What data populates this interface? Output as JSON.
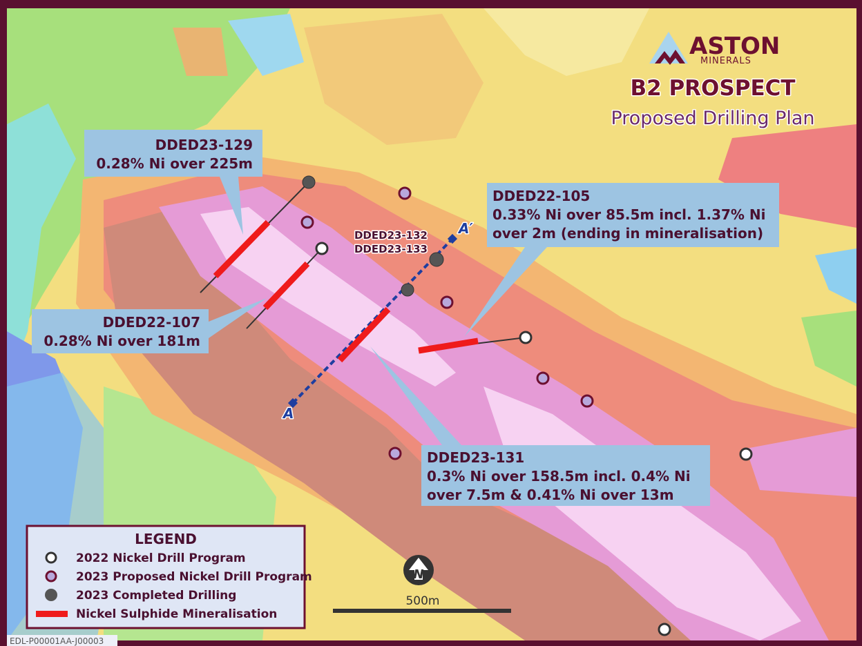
{
  "header": {
    "logo_word": "ASTON",
    "logo_sub": "MINERALS",
    "title": "B2 PROSPECT",
    "subtitle": "Proposed Drilling Plan"
  },
  "callouts": [
    {
      "hole": "DDED23-129",
      "lines": [
        "0.28% Ni over 225m"
      ]
    },
    {
      "hole": "DDED22-107",
      "lines": [
        "0.28% Ni over 181m"
      ]
    },
    {
      "hole": "DDED22-105",
      "lines": [
        "0.33% Ni over 85.5m incl. 1.37% Ni",
        "over 2m (ending in mineralisation)"
      ]
    },
    {
      "hole": "DDED23-131",
      "lines": [
        "0.3% Ni over 158.5m incl. 0.4% Ni",
        "over 7.5m & 0.41% Ni over 13m"
      ]
    }
  ],
  "hole_labels": [
    "DDED23-132",
    "DDED23-133"
  ],
  "section": {
    "start": "A",
    "end": "A′"
  },
  "legend": {
    "title": "LEGEND",
    "items": [
      "2022 Nickel Drill Program",
      "2023 Proposed Nickel Drill Program",
      "2023 Completed Drilling",
      "Nickel Sulphide Mineralisation"
    ]
  },
  "north": "N",
  "scale": "500m",
  "footer": "EDL-P00001AA-J00003"
}
